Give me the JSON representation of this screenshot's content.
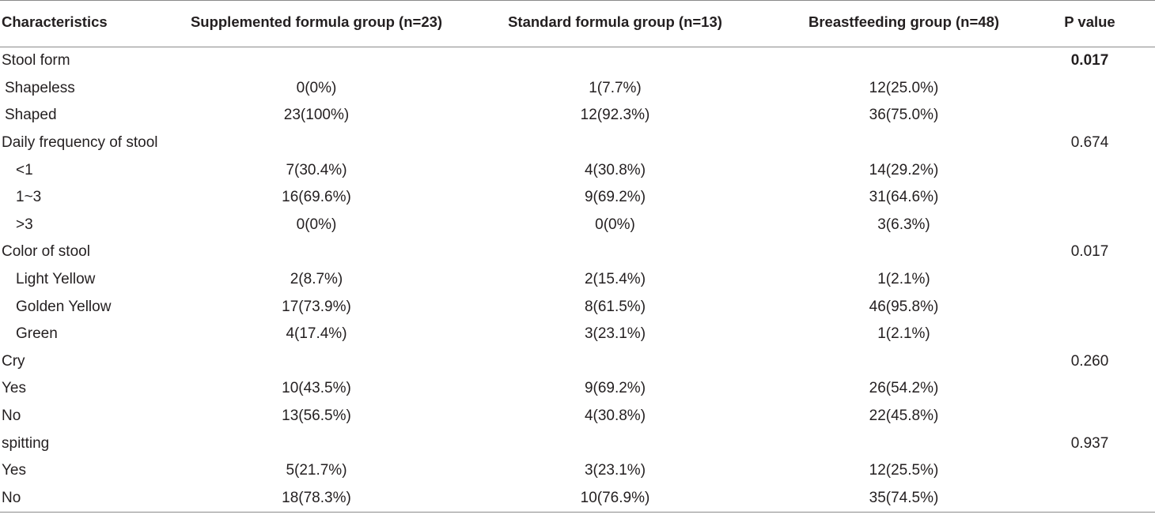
{
  "header": {
    "characteristics": "Characteristics",
    "supplemented": "Supplemented formula group (n=23)",
    "standard": "Standard formula group (n=13)",
    "breastfeeding": "Breastfeeding group (n=48)",
    "p_value": "P value"
  },
  "rows": [
    {
      "label": "Stool form",
      "level": 0,
      "supplemented": "",
      "standard": "",
      "breastfeeding": "",
      "p": "0.017",
      "p_bold": true
    },
    {
      "label": "Shapeless",
      "level": 1,
      "supplemented": "0(0%)",
      "standard": "1(7.7%)",
      "breastfeeding": "12(25.0%)",
      "p": ""
    },
    {
      "label": "Shaped",
      "level": 1,
      "supplemented": "23(100%)",
      "standard": "12(92.3%)",
      "breastfeeding": "36(75.0%)",
      "p": ""
    },
    {
      "label": "Daily frequency of stool",
      "level": 0,
      "supplemented": "",
      "standard": "",
      "breastfeeding": "",
      "p": "0.674"
    },
    {
      "label": "<1",
      "level": 2,
      "supplemented": "7(30.4%)",
      "standard": "4(30.8%)",
      "breastfeeding": "14(29.2%)",
      "p": ""
    },
    {
      "label": "1~3",
      "level": 2,
      "supplemented": "16(69.6%)",
      "standard": "9(69.2%)",
      "breastfeeding": "31(64.6%)",
      "p": ""
    },
    {
      "label": ">3",
      "level": 2,
      "supplemented": "0(0%)",
      "standard": "0(0%)",
      "breastfeeding": "3(6.3%)",
      "p": ""
    },
    {
      "label": "Color of stool",
      "level": 0,
      "supplemented": "",
      "standard": "",
      "breastfeeding": "",
      "p": "0.017"
    },
    {
      "label": "Light Yellow",
      "level": 2,
      "supplemented": "2(8.7%)",
      "standard": "2(15.4%)",
      "breastfeeding": "1(2.1%)",
      "p": ""
    },
    {
      "label": "Golden Yellow",
      "level": 2,
      "supplemented": "17(73.9%)",
      "standard": "8(61.5%)",
      "breastfeeding": "46(95.8%)",
      "p": ""
    },
    {
      "label": "Green",
      "level": 2,
      "supplemented": "4(17.4%)",
      "standard": "3(23.1%)",
      "breastfeeding": "1(2.1%)",
      "p": ""
    },
    {
      "label": "Cry",
      "level": 0,
      "supplemented": "",
      "standard": "",
      "breastfeeding": "",
      "p": "0.260"
    },
    {
      "label": "Yes",
      "level": 0,
      "supplemented": "10(43.5%)",
      "standard": "9(69.2%)",
      "breastfeeding": "26(54.2%)",
      "p": ""
    },
    {
      "label": "No",
      "level": 0,
      "supplemented": "13(56.5%)",
      "standard": "4(30.8%)",
      "breastfeeding": "22(45.8%)",
      "p": ""
    },
    {
      "label": "spitting",
      "level": 0,
      "supplemented": "",
      "standard": "",
      "breastfeeding": "",
      "p": "0.937"
    },
    {
      "label": "Yes",
      "level": 0,
      "supplemented": "5(21.7%)",
      "standard": "3(23.1%)",
      "breastfeeding": "12(25.5%)",
      "p": ""
    },
    {
      "label": "No",
      "level": 0,
      "supplemented": "18(78.3%)",
      "standard": "10(76.9%)",
      "breastfeeding": "35(74.5%)",
      "p": ""
    }
  ]
}
